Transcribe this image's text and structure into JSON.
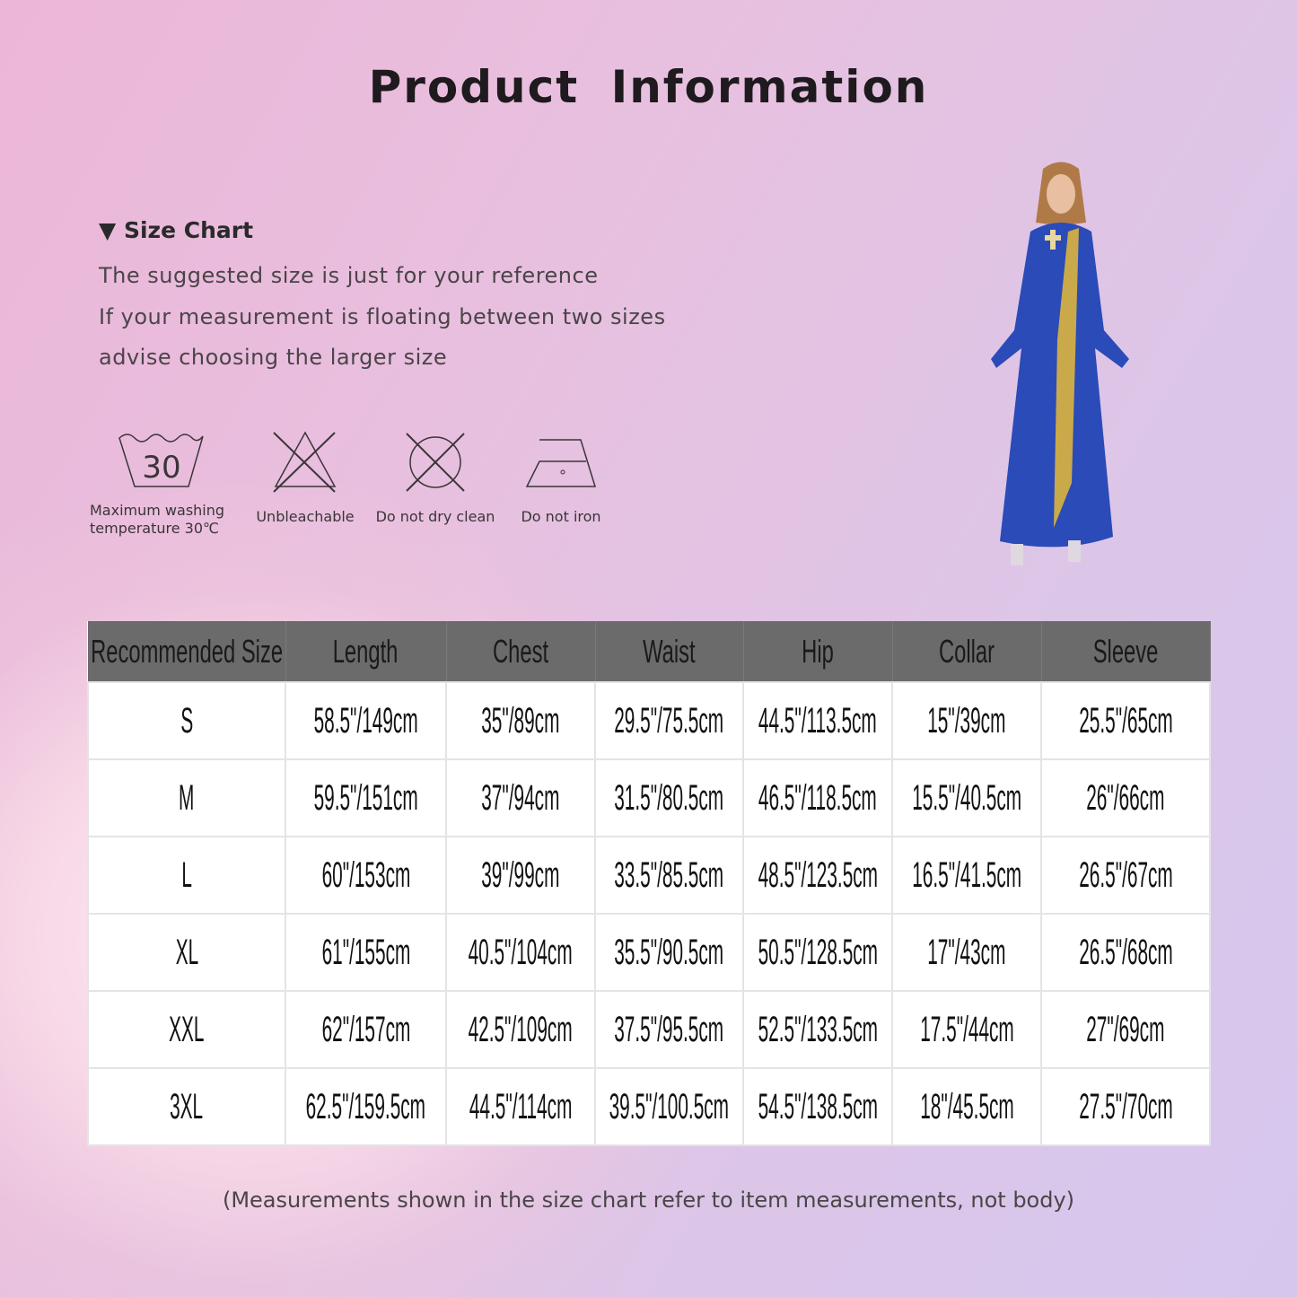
{
  "title": "Product  Information",
  "size_chart": {
    "heading": "Size Chart",
    "lines": [
      "The suggested size is just for your reference",
      "If your measurement is floating between two sizes",
      "advise choosing the larger size"
    ]
  },
  "care": [
    {
      "icon": "wash-30-icon",
      "number": "30",
      "label1": "Maximum washing",
      "label2": "temperature 30℃"
    },
    {
      "icon": "no-bleach-icon",
      "label1": "Unbleachable"
    },
    {
      "icon": "no-dry-clean-icon",
      "label1": "Do not dry clean"
    },
    {
      "icon": "iron-icon",
      "label1": "Do not iron"
    }
  ],
  "table": {
    "headers": [
      "Recommended Size",
      "Length",
      "Chest",
      "Waist",
      "Hip",
      "Collar",
      "Sleeve"
    ],
    "rows": [
      [
        "S",
        "58.5\"/149cm",
        "35\"/89cm",
        "29.5\"/75.5cm",
        "44.5\"/113.5cm",
        "15\"/39cm",
        "25.5\"/65cm"
      ],
      [
        "M",
        "59.5\"/151cm",
        "37\"/94cm",
        "31.5\"/80.5cm",
        "46.5\"/118.5cm",
        "15.5\"/40.5cm",
        "26\"/66cm"
      ],
      [
        "L",
        "60\"/153cm",
        "39\"/99cm",
        "33.5\"/85.5cm",
        "48.5\"/123.5cm",
        "16.5\"/41.5cm",
        "26.5\"/67cm"
      ],
      [
        "XL",
        "61\"/155cm",
        "40.5\"/104cm",
        "35.5\"/90.5cm",
        "50.5\"/128.5cm",
        "17\"/43cm",
        "26.5\"/68cm"
      ],
      [
        "XXL",
        "62\"/157cm",
        "42.5\"/109cm",
        "37.5\"/95.5cm",
        "52.5\"/133.5cm",
        "17.5\"/44cm",
        "27\"/69cm"
      ],
      [
        "3XL",
        "62.5\"/159.5cm",
        "44.5\"/114cm",
        "39.5\"/100.5cm",
        "54.5\"/138.5cm",
        "18\"/45.5cm",
        "27.5\"/70cm"
      ]
    ]
  },
  "footnote": "(Measurements shown in the size chart refer to item measurements, not body)",
  "colors": {
    "dress": "#2a4bb8",
    "gold": "#c9a94a",
    "header": "#6b6b6b"
  }
}
